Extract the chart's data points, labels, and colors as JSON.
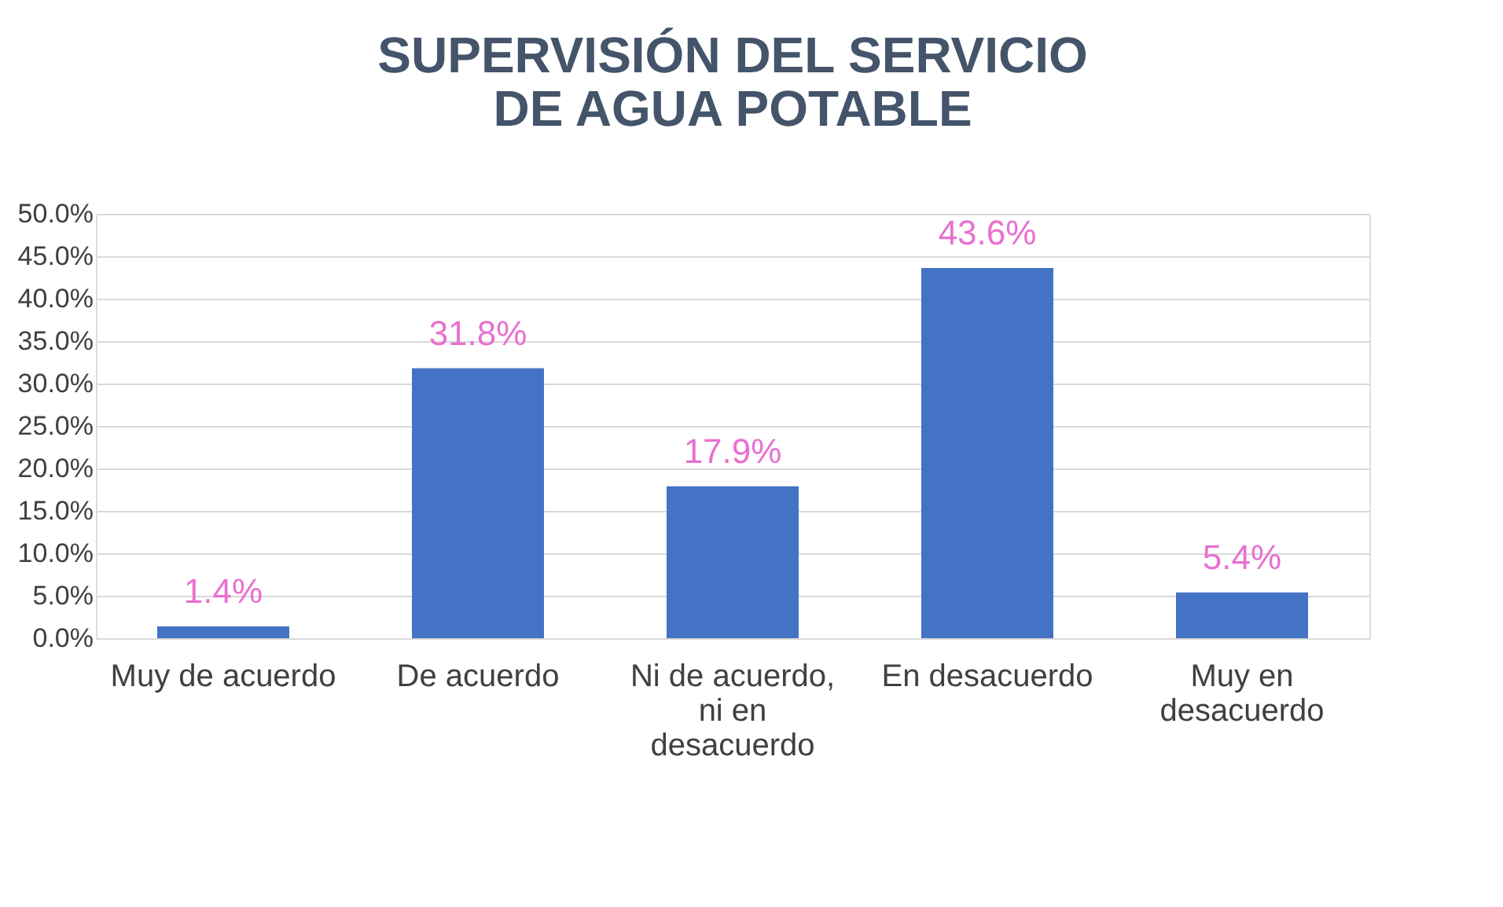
{
  "chart_data": {
    "type": "bar",
    "title": "SUPERVISIÓN DEL SERVICIO DE AGUA POTABLE",
    "categories": [
      "Muy de acuerdo",
      "De acuerdo",
      "Ni de acuerdo, ni en desacuerdo",
      "En desacuerdo",
      "Muy en desacuerdo"
    ],
    "values": [
      1.4,
      31.8,
      17.9,
      43.6,
      5.4
    ],
    "value_labels": [
      "1.4%",
      "31.8%",
      "17.9%",
      "43.6%",
      "5.4%"
    ],
    "color": "#4472c4",
    "ylim": [
      0,
      50
    ],
    "yticks": [
      {
        "value": 0,
        "label": "0.0%"
      },
      {
        "value": 5,
        "label": "5.0%"
      },
      {
        "value": 10,
        "label": "10.0%"
      },
      {
        "value": 15,
        "label": "15.0%"
      },
      {
        "value": 20,
        "label": "20.0%"
      },
      {
        "value": 25,
        "label": "25.0%"
      },
      {
        "value": 30,
        "label": "30.0%"
      },
      {
        "value": 35,
        "label": "35.0%"
      },
      {
        "value": 40,
        "label": "40.0%"
      },
      {
        "value": 45,
        "label": "45.0%"
      },
      {
        "value": 50,
        "label": "50.0%"
      }
    ],
    "grid": "y"
  }
}
